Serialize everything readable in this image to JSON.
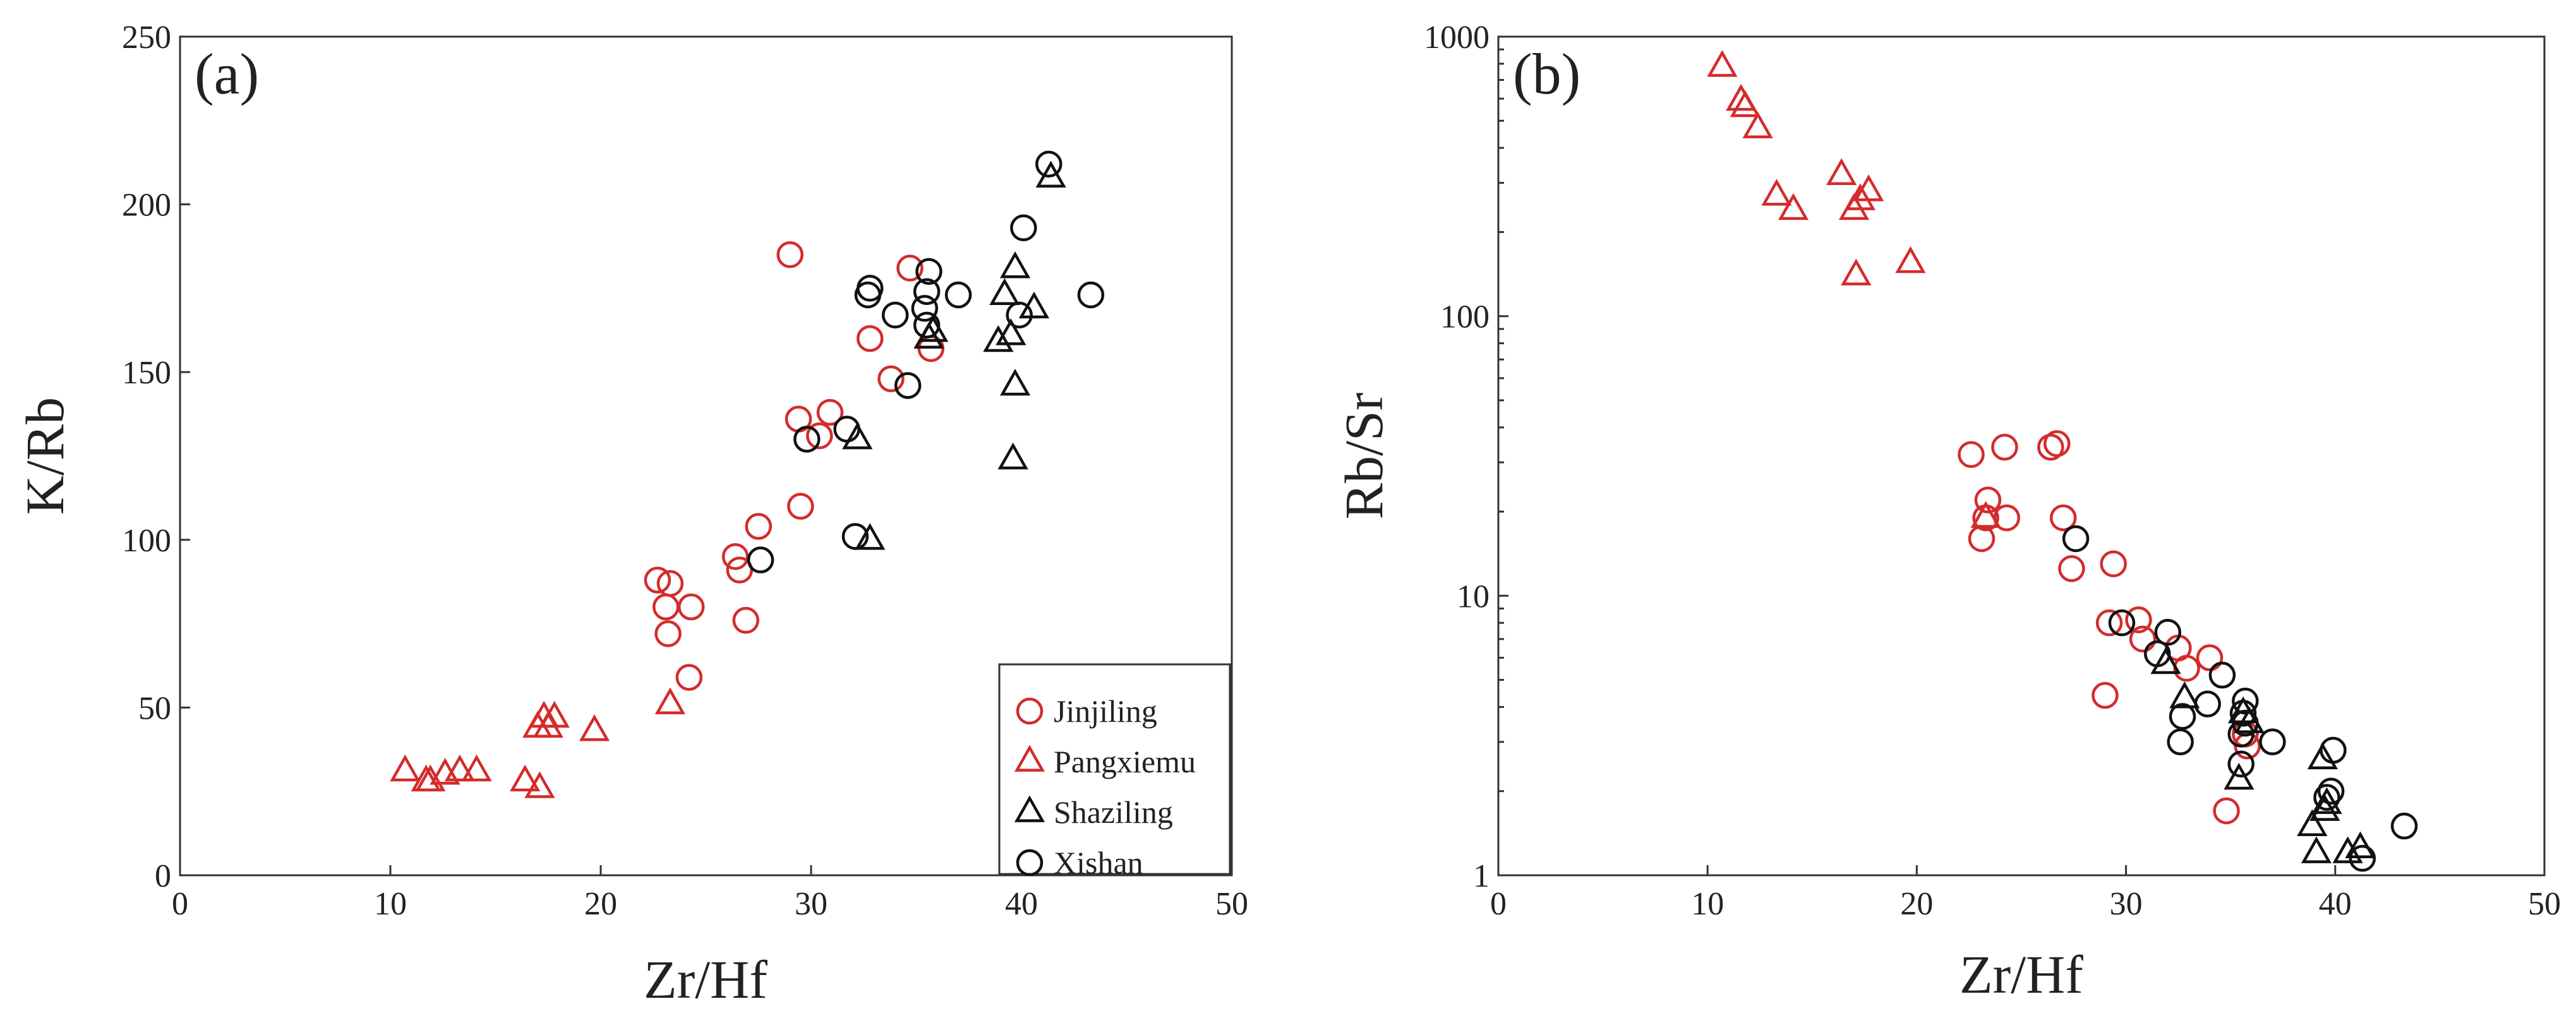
{
  "colors": {
    "red": "#d42b2b",
    "black": "#111111"
  },
  "legend": [
    {
      "label": "Jinjiling",
      "marker": "circle",
      "color": "red"
    },
    {
      "label": "Pangxiemu",
      "marker": "triangle",
      "color": "red"
    },
    {
      "label": "Shaziling",
      "marker": "triangle",
      "color": "black"
    },
    {
      "label": "Xishan",
      "marker": "circle",
      "color": "black"
    }
  ],
  "chart_data": [
    {
      "type": "scatter",
      "panel_label": "(a)",
      "xlabel": "Zr/Hf",
      "ylabel": "K/Rb",
      "xlim": [
        0,
        50
      ],
      "ylim": [
        0,
        250
      ],
      "yscale": "linear",
      "xticks": [
        0,
        10,
        20,
        30,
        40,
        50
      ],
      "yticks": [
        0,
        50,
        100,
        150,
        200,
        250
      ],
      "legend_position": "bottom-right",
      "series": [
        {
          "name": "Jinjiling",
          "marker": "circle",
          "color": "red",
          "points": [
            [
              29.0,
              185
            ],
            [
              34.7,
              181
            ],
            [
              35.7,
              157
            ],
            [
              32.8,
              160
            ],
            [
              33.8,
              148
            ],
            [
              29.4,
              136
            ],
            [
              30.9,
              138
            ],
            [
              30.4,
              131
            ],
            [
              29.5,
              110
            ],
            [
              27.5,
              104
            ],
            [
              26.4,
              95
            ],
            [
              26.6,
              91
            ],
            [
              26.9,
              76
            ],
            [
              22.7,
              88
            ],
            [
              23.3,
              87
            ],
            [
              23.1,
              80
            ],
            [
              24.3,
              80
            ],
            [
              23.2,
              72
            ],
            [
              24.2,
              59
            ]
          ]
        },
        {
          "name": "Pangxiemu",
          "marker": "triangle",
          "color": "red",
          "points": [
            [
              10.7,
              31
            ],
            [
              11.7,
              28
            ],
            [
              11.9,
              28
            ],
            [
              12.6,
              30
            ],
            [
              13.3,
              31
            ],
            [
              14.1,
              31
            ],
            [
              16.4,
              28
            ],
            [
              17.1,
              26
            ],
            [
              17.0,
              44
            ],
            [
              17.3,
              47
            ],
            [
              17.5,
              44
            ],
            [
              17.8,
              47
            ],
            [
              19.7,
              43
            ],
            [
              23.3,
              51
            ]
          ]
        },
        {
          "name": "Shaziling",
          "marker": "triangle",
          "color": "black",
          "points": [
            [
              41.4,
              208
            ],
            [
              39.7,
              181
            ],
            [
              39.2,
              173
            ],
            [
              40.6,
              169
            ],
            [
              39.5,
              161
            ],
            [
              38.9,
              159
            ],
            [
              39.7,
              146
            ],
            [
              39.6,
              124
            ],
            [
              35.8,
              162
            ],
            [
              35.6,
              160
            ],
            [
              32.2,
              130
            ],
            [
              32.8,
              100
            ]
          ]
        },
        {
          "name": "Xishan",
          "marker": "circle",
          "color": "black",
          "points": [
            [
              41.3,
              212
            ],
            [
              40.1,
              193
            ],
            [
              43.3,
              173
            ],
            [
              37.0,
              173
            ],
            [
              35.6,
              180
            ],
            [
              35.5,
              174
            ],
            [
              35.4,
              169
            ],
            [
              35.5,
              164
            ],
            [
              34.0,
              167
            ],
            [
              32.8,
              175
            ],
            [
              32.7,
              173
            ],
            [
              39.9,
              167
            ],
            [
              34.6,
              146
            ],
            [
              31.7,
              133
            ],
            [
              29.8,
              130
            ],
            [
              32.1,
              101
            ],
            [
              27.6,
              94
            ]
          ]
        }
      ]
    },
    {
      "type": "scatter",
      "panel_label": "(b)",
      "xlabel": "Zr/Hf",
      "ylabel": "Rb/Sr",
      "xlim": [
        0,
        50
      ],
      "ylim": [
        1,
        1000
      ],
      "yscale": "log",
      "xticks": [
        0,
        10,
        20,
        30,
        40,
        50
      ],
      "yticks": [
        1,
        10,
        100,
        1000
      ],
      "series": [
        {
          "name": "Jinjiling",
          "marker": "circle",
          "color": "red",
          "points": [
            [
              22.6,
              32
            ],
            [
              24.2,
              34
            ],
            [
              26.4,
              34
            ],
            [
              26.7,
              35
            ],
            [
              23.4,
              22
            ],
            [
              23.3,
              19
            ],
            [
              24.3,
              19
            ],
            [
              23.1,
              16
            ],
            [
              27.0,
              19
            ],
            [
              27.4,
              12.5
            ],
            [
              29.4,
              13
            ],
            [
              29.2,
              8
            ],
            [
              30.6,
              8.2
            ],
            [
              30.8,
              7
            ],
            [
              32.5,
              6.5
            ],
            [
              34.0,
              6
            ],
            [
              32.9,
              5.5
            ],
            [
              29.0,
              4.4
            ],
            [
              35.7,
              3.2
            ],
            [
              35.8,
              2.9
            ],
            [
              34.8,
              1.7
            ]
          ]
        },
        {
          "name": "Pangxiemu",
          "marker": "triangle",
          "color": "red",
          "points": [
            [
              10.7,
              780
            ],
            [
              11.6,
              590
            ],
            [
              11.8,
              560
            ],
            [
              12.4,
              470
            ],
            [
              13.3,
              270
            ],
            [
              14.1,
              240
            ],
            [
              16.4,
              320
            ],
            [
              17.3,
              260
            ],
            [
              17.0,
              240
            ],
            [
              17.7,
              280
            ],
            [
              17.1,
              140
            ],
            [
              19.7,
              155
            ],
            [
              23.3,
              19
            ]
          ]
        },
        {
          "name": "Shaziling",
          "marker": "triangle",
          "color": "black",
          "points": [
            [
              31.9,
              5.7
            ],
            [
              32.8,
              4.3
            ],
            [
              35.6,
              3.8
            ],
            [
              35.9,
              3.5
            ],
            [
              35.4,
              2.2
            ],
            [
              39.4,
              2.6
            ],
            [
              39.6,
              1.8
            ],
            [
              39.5,
              1.7
            ],
            [
              38.9,
              1.5
            ],
            [
              39.1,
              1.2
            ],
            [
              40.6,
              1.2
            ],
            [
              41.2,
              1.25
            ]
          ]
        },
        {
          "name": "Xishan",
          "marker": "circle",
          "color": "black",
          "points": [
            [
              27.6,
              16
            ],
            [
              29.8,
              8
            ],
            [
              32.0,
              7.4
            ],
            [
              31.5,
              6.2
            ],
            [
              34.6,
              5.2
            ],
            [
              33.9,
              4.1
            ],
            [
              35.7,
              4.2
            ],
            [
              32.7,
              3.7
            ],
            [
              35.6,
              3.8
            ],
            [
              35.7,
              3.5
            ],
            [
              35.5,
              3.2
            ],
            [
              32.6,
              3.0
            ],
            [
              37.0,
              3.0
            ],
            [
              39.9,
              2.8
            ],
            [
              35.5,
              2.5
            ],
            [
              39.8,
              2.0
            ],
            [
              39.6,
              1.9
            ],
            [
              43.3,
              1.5
            ],
            [
              41.3,
              1.15
            ]
          ]
        }
      ]
    }
  ]
}
